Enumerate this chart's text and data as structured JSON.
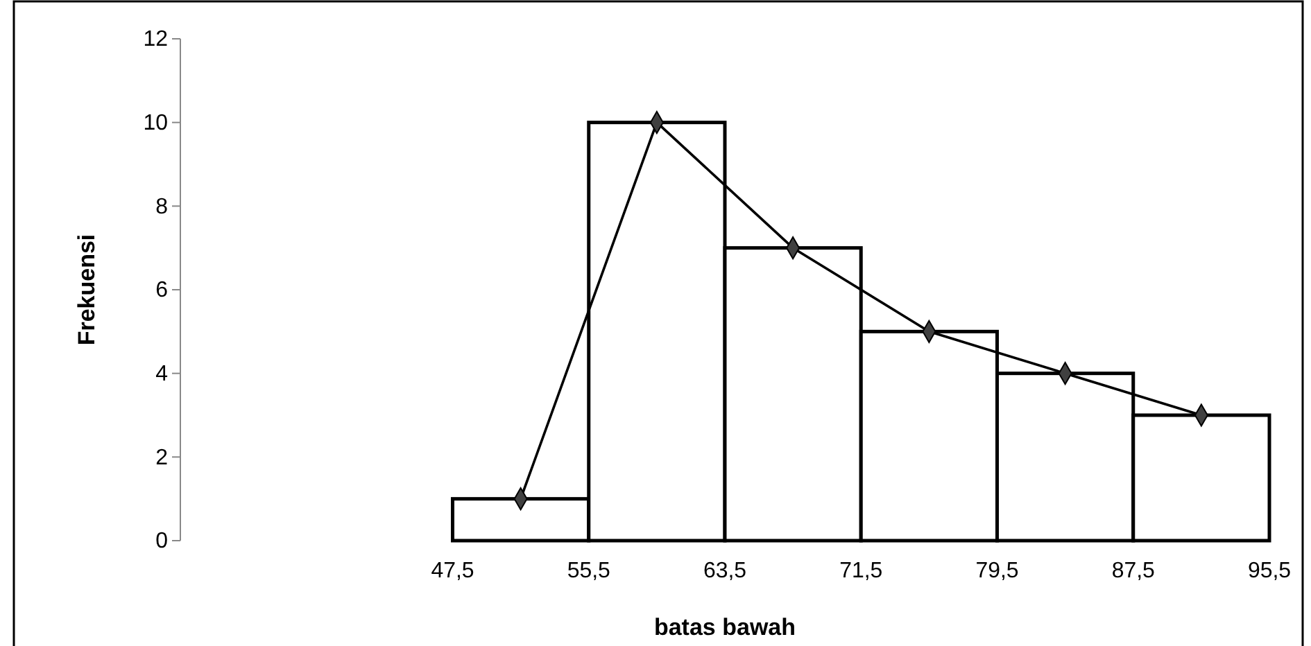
{
  "chart_data": {
    "type": "histogram",
    "xlabel": "batas bawah",
    "ylabel": "Frekuensi",
    "bins": [
      47.5,
      55.5,
      63.5,
      71.5,
      79.5,
      87.5,
      95.5
    ],
    "values": [
      1,
      10,
      7,
      5,
      4,
      3
    ],
    "color": "#ffffff",
    "series": [
      {
        "type": "line",
        "x": [
          51.5,
          59.5,
          67.5,
          75.5,
          83.5,
          91.5
        ],
        "values": [
          1,
          10,
          7,
          5,
          4,
          3
        ],
        "color": "#404040"
      }
    ],
    "marker": "diamond",
    "line_style": "solid",
    "xlim": [
      31.5,
      95.5
    ],
    "xticks": [
      {
        "value": 47.5,
        "label": "47,5"
      },
      {
        "value": 55.5,
        "label": "55,5"
      },
      {
        "value": 63.5,
        "label": "63,5"
      },
      {
        "value": 71.5,
        "label": "71,5"
      },
      {
        "value": 79.5,
        "label": "79,5"
      },
      {
        "value": 87.5,
        "label": "87,5"
      },
      {
        "value": 95.5,
        "label": "95,5"
      }
    ],
    "ylim": [
      0,
      12
    ],
    "yticks": [
      0,
      2,
      4,
      6,
      8,
      10,
      12
    ]
  }
}
